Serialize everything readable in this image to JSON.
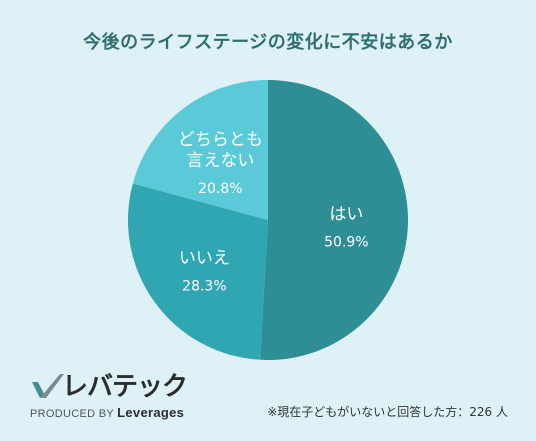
{
  "title": "今後のライフステージの変化に不安はあるか",
  "chart_data": {
    "type": "pie",
    "slices": [
      {
        "name": "はい",
        "lines": [
          "はい"
        ],
        "value": 50.9,
        "label": "50.9%",
        "color": "#2e8e96"
      },
      {
        "name": "いいえ",
        "lines": [
          "いいえ"
        ],
        "value": 28.3,
        "label": "28.3%",
        "color": "#30a6b2"
      },
      {
        "name": "どちらとも言えない",
        "lines": [
          "どちらとも",
          "言えない"
        ],
        "value": 20.8,
        "label": "20.8%",
        "color": "#5ac9d8"
      }
    ]
  },
  "logo": {
    "text": "レバテック",
    "produced_by": "PRODUCED BY",
    "brand": "Leverages"
  },
  "note": "※現在子どもがいないと回答した方：226 人"
}
